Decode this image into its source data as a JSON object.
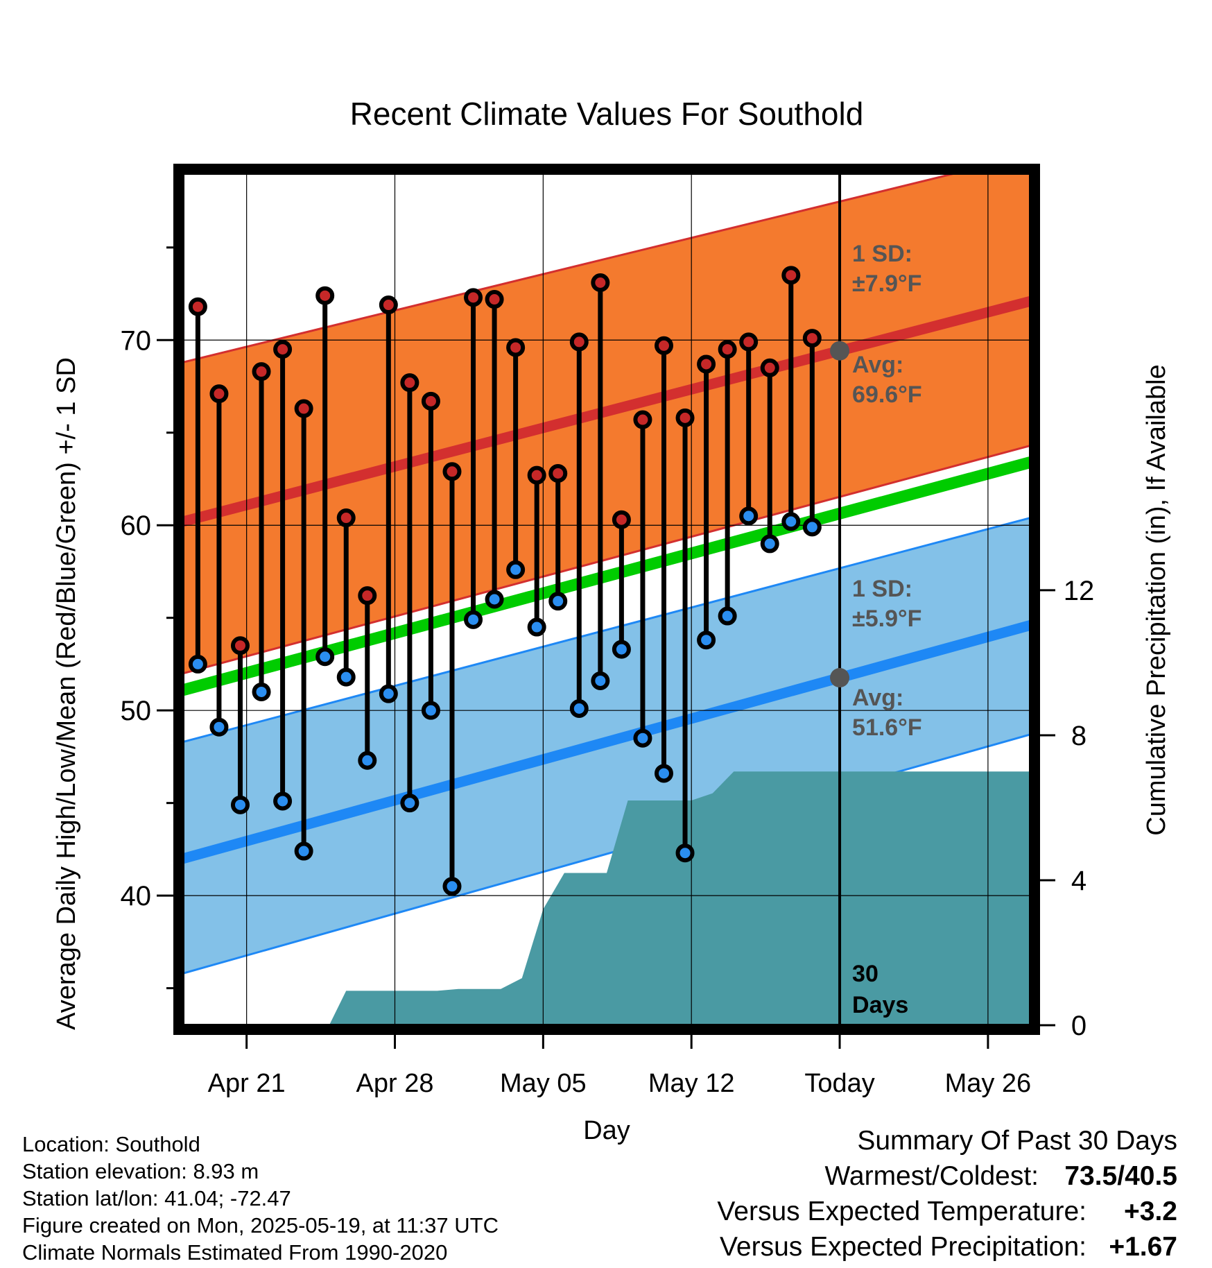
{
  "chart_data": {
    "type": "line",
    "title": "Recent Climate Values For Southold",
    "xlabel": "Day",
    "ylabel_left": "Average Daily High/Low/Mean (Red/Blue/Green) +/- 1 SD",
    "ylabel_right": "Cumulative Precipitation (in), If Available",
    "x_tick_labels": [
      "Apr 21",
      "Apr 28",
      "May 05",
      "May 12",
      "Today",
      "May 26"
    ],
    "x_tick_days": [
      3,
      10,
      17,
      24,
      31,
      38
    ],
    "x_range_days": [
      0,
      40
    ],
    "today_day": 31,
    "ylim_left": [
      33,
      79
    ],
    "y_ticks_left": [
      40,
      50,
      60,
      70
    ],
    "ylim_right": [
      0,
      23.5
    ],
    "y_ticks_right": [
      0,
      4,
      8,
      12
    ],
    "grid": true,
    "series": [
      {
        "name": "High",
        "color": "#c62828",
        "days": [
          0.7,
          1.7,
          2.7,
          3.7,
          4.7,
          5.7,
          6.7,
          7.7,
          8.7,
          9.7,
          10.7,
          11.7,
          12.7,
          13.7,
          14.7,
          15.7,
          16.7,
          17.7,
          18.7,
          19.7,
          20.7,
          21.7,
          22.7,
          23.7,
          24.7,
          25.7,
          26.7,
          27.7,
          28.7,
          29.7
        ],
        "values": [
          71.8,
          67.1,
          53.5,
          68.3,
          69.5,
          66.3,
          72.4,
          60.4,
          56.2,
          71.9,
          67.7,
          66.7,
          62.9,
          72.3,
          72.2,
          69.6,
          62.7,
          62.8,
          69.9,
          73.1,
          60.3,
          65.7,
          69.7,
          65.8,
          68.7,
          69.5,
          69.9,
          68.5,
          73.5,
          70.1
        ]
      },
      {
        "name": "Low",
        "color": "#2b8ef0",
        "days": [
          0.7,
          1.7,
          2.7,
          3.7,
          4.7,
          5.7,
          6.7,
          7.7,
          8.7,
          9.7,
          10.7,
          11.7,
          12.7,
          13.7,
          14.7,
          15.7,
          16.7,
          17.7,
          18.7,
          19.7,
          20.7,
          21.7,
          22.7,
          23.7,
          24.7,
          25.7,
          26.7,
          27.7,
          28.7,
          29.7
        ],
        "values": [
          52.5,
          49.1,
          44.9,
          51.0,
          45.1,
          42.4,
          52.9,
          51.8,
          47.3,
          50.9,
          45.0,
          50.0,
          40.5,
          54.9,
          56.0,
          57.6,
          54.5,
          55.9,
          50.1,
          51.6,
          53.3,
          48.5,
          46.6,
          42.3,
          53.8,
          55.1,
          60.5,
          59.0,
          60.2,
          59.9
        ]
      }
    ],
    "normals": {
      "high_avg": {
        "days": [
          0,
          40
        ],
        "values": [
          60.2,
          72.1
        ]
      },
      "high_upper": {
        "days": [
          0,
          40
        ],
        "values": [
          68.8,
          80.0
        ]
      },
      "high_lower": {
        "days": [
          0,
          40
        ],
        "values": [
          52.0,
          64.3
        ]
      },
      "mean": {
        "days": [
          0,
          40
        ],
        "values": [
          51.1,
          63.4
        ]
      },
      "low_avg": {
        "days": [
          0,
          40
        ],
        "values": [
          42.0,
          54.6
        ]
      },
      "low_upper": {
        "days": [
          0,
          40
        ],
        "values": [
          48.3,
          60.4
        ]
      },
      "low_lower": {
        "days": [
          0,
          40
        ],
        "values": [
          35.8,
          48.7
        ]
      }
    },
    "precip": {
      "name": "Cumulative Precipitation",
      "color": "#4a9aa3",
      "days": [
        6.9,
        7.7,
        10,
        12,
        13,
        15,
        16,
        17,
        18,
        20,
        21,
        24,
        25,
        26,
        40
      ],
      "values": [
        0,
        0.95,
        0.95,
        0.95,
        1.0,
        1.0,
        1.3,
        3.2,
        4.2,
        4.2,
        6.2,
        6.2,
        6.4,
        7.0,
        7.0
      ]
    },
    "annotations": {
      "high_sd_label": "1 SD:",
      "high_sd_value": "±7.9°F",
      "high_avg_label": "Avg:",
      "high_avg_value": "69.6°F",
      "low_sd_label": "1 SD:",
      "low_sd_value": "±5.9°F",
      "low_avg_label": "Avg:",
      "low_avg_value": "51.6°F",
      "days_count": "30",
      "days_word": "Days"
    },
    "colors": {
      "high_band": "#f47a2e",
      "high_line": "#d32f2f",
      "low_band": "#83c1e8",
      "low_line": "#1e88f5",
      "mean_line": "#00cc00",
      "annotation_text": "#555555"
    }
  },
  "info": {
    "location": "Location: Southold",
    "elevation": "Station elevation: 8.93 m",
    "latlon": "Station lat/lon: 41.04; -72.47",
    "created": "Figure created on Mon, 2025-05-19, at 11:37 UTC",
    "normals": "Climate Normals Estimated From 1990-2020"
  },
  "summary": {
    "title": "Summary Of Past 30 Days",
    "warmest_label": "Warmest/Coldest:",
    "warmest_value": "73.5/40.5",
    "temp_label": "Versus Expected Temperature:",
    "temp_value": "+3.2",
    "temp_color": "#d32f2f",
    "precip_label": "Versus Expected Precipitation:",
    "precip_value": "+1.67",
    "precip_color": "#22bb22"
  }
}
